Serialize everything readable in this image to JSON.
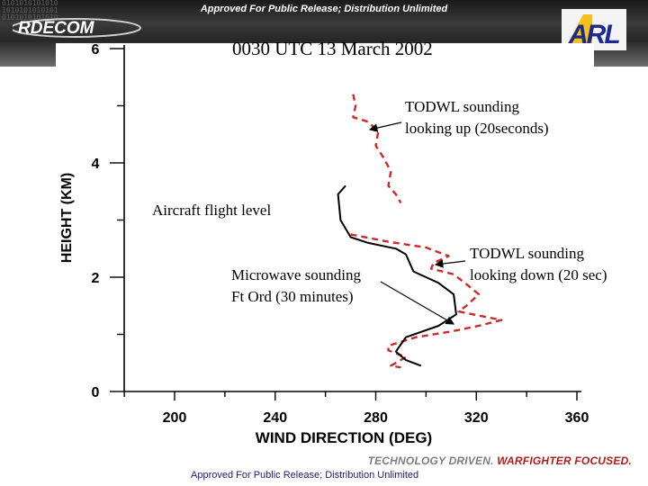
{
  "header": {
    "release_top": "Approved For Public Release; Distribution Unlimited",
    "logo_left": "RDECOM",
    "logo_right": "ARL",
    "binary_decoration": "0101010101010\n1010101010101\n0101010101010"
  },
  "footer": {
    "tagline_part1": "TECHNOLOGY DRIVEN.",
    "tagline_part2": "WARFIGHTER FOCUSED.",
    "release_bottom": "Approved For Public Release; Distribution Unlimited",
    "colors": {
      "tagline_grey": "#7d7d7d",
      "tagline_red": "#b01c1c"
    }
  },
  "annotations": {
    "todwl_up": "TODWL sounding\nlooking up (20seconds)",
    "aircraft": "Aircraft flight level",
    "todwl_down": "TODWL sounding\nlooking down (20 sec)",
    "microwave": "Microwave sounding\nFt Ord (30 minutes)"
  },
  "chart_data": {
    "type": "line",
    "title": "0030 UTC 13 March 2002",
    "xlabel": "WIND DIRECTION (DEG)",
    "ylabel": "HEIGHT (KM)",
    "xlim": [
      200,
      360
    ],
    "ylim": [
      0,
      6
    ],
    "x_ticks": [
      200,
      240,
      280,
      320,
      360
    ],
    "y_ticks": [
      0,
      2,
      4,
      6
    ],
    "grid": false,
    "legend": "none",
    "series": [
      {
        "color": "#cc2a2a",
        "style": "dashed",
        "points": [
          {
            "x": 271,
            "y": 5.2
          },
          {
            "x": 272,
            "y": 5.0
          },
          {
            "x": 271,
            "y": 4.8
          },
          {
            "x": 277,
            "y": 4.72
          },
          {
            "x": 281,
            "y": 4.55
          },
          {
            "x": 280,
            "y": 4.3
          },
          {
            "x": 283,
            "y": 4.1
          },
          {
            "x": 286,
            "y": 3.85
          },
          {
            "x": 285,
            "y": 3.6
          },
          {
            "x": 288,
            "y": 3.45
          },
          {
            "x": 290,
            "y": 3.3
          }
        ]
      },
      {
        "color": "#cc2a2a",
        "style": "dashed",
        "points": [
          {
            "x": 270,
            "y": 2.75
          },
          {
            "x": 285,
            "y": 2.62
          },
          {
            "x": 300,
            "y": 2.52
          },
          {
            "x": 309,
            "y": 2.37
          },
          {
            "x": 303,
            "y": 2.25
          },
          {
            "x": 302,
            "y": 2.15
          },
          {
            "x": 311,
            "y": 2.05
          },
          {
            "x": 316,
            "y": 1.88
          },
          {
            "x": 321,
            "y": 1.7
          },
          {
            "x": 316,
            "y": 1.5
          },
          {
            "x": 313,
            "y": 1.4
          },
          {
            "x": 330,
            "y": 1.25
          },
          {
            "x": 321,
            "y": 1.15
          },
          {
            "x": 310,
            "y": 1.05
          },
          {
            "x": 296,
            "y": 0.95
          },
          {
            "x": 285,
            "y": 0.8
          },
          {
            "x": 285,
            "y": 0.72
          },
          {
            "x": 292,
            "y": 0.6
          },
          {
            "x": 286,
            "y": 0.45
          },
          {
            "x": 290,
            "y": 0.42
          }
        ]
      },
      {
        "color": "#000000",
        "style": "solid",
        "points": [
          {
            "x": 268,
            "y": 3.6
          },
          {
            "x": 265,
            "y": 3.45
          },
          {
            "x": 266,
            "y": 3.0
          },
          {
            "x": 270,
            "y": 2.7
          },
          {
            "x": 277,
            "y": 2.6
          },
          {
            "x": 288,
            "y": 2.5
          },
          {
            "x": 292,
            "y": 2.4
          },
          {
            "x": 295,
            "y": 2.1
          },
          {
            "x": 305,
            "y": 1.9
          },
          {
            "x": 311,
            "y": 1.7
          },
          {
            "x": 312,
            "y": 1.35
          },
          {
            "x": 305,
            "y": 1.15
          },
          {
            "x": 292,
            "y": 0.95
          },
          {
            "x": 288,
            "y": 0.7
          },
          {
            "x": 292,
            "y": 0.55
          },
          {
            "x": 298,
            "y": 0.45
          }
        ]
      }
    ]
  }
}
